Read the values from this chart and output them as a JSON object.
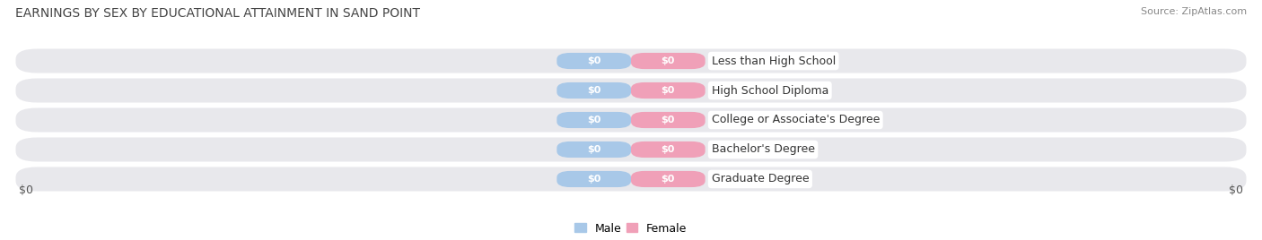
{
  "title": "EARNINGS BY SEX BY EDUCATIONAL ATTAINMENT IN SAND POINT",
  "source": "Source: ZipAtlas.com",
  "categories": [
    "Less than High School",
    "High School Diploma",
    "College or Associate's Degree",
    "Bachelor's Degree",
    "Graduate Degree"
  ],
  "male_values": [
    0,
    0,
    0,
    0,
    0
  ],
  "female_values": [
    0,
    0,
    0,
    0,
    0
  ],
  "male_color": "#a8c8e8",
  "female_color": "#f0a0b8",
  "row_bg_color": "#e8e8ec",
  "xlabel_left": "$0",
  "xlabel_right": "$0",
  "male_label": "Male",
  "female_label": "Female",
  "title_fontsize": 10,
  "source_fontsize": 8,
  "bar_label_fontsize": 8,
  "cat_label_fontsize": 9,
  "tick_fontsize": 9
}
